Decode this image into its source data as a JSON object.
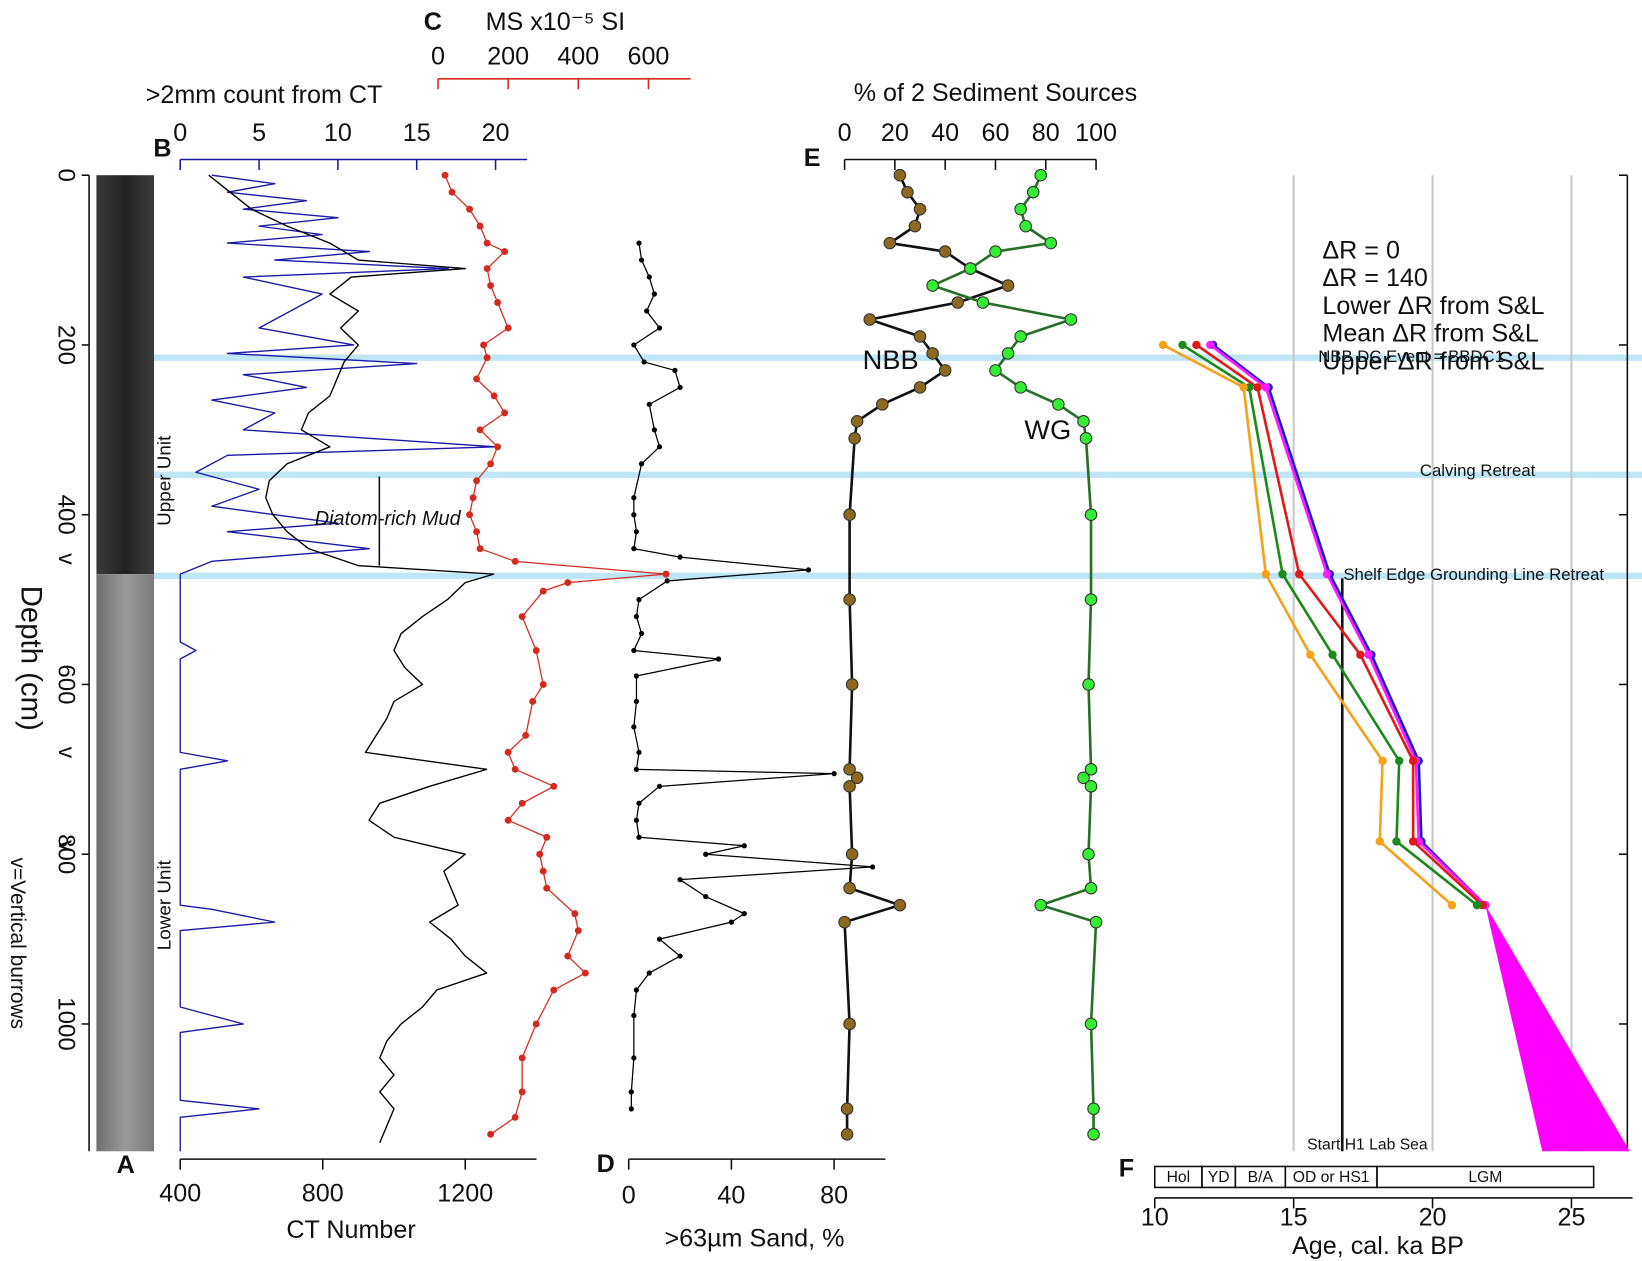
{
  "chart_data": [
    {
      "type": "core",
      "label": "A",
      "ylabel": "Depth (cm)",
      "ylim": [
        0,
        1150
      ],
      "yticks": [
        0,
        200,
        400,
        600,
        800,
        1000
      ],
      "note": "v=Vertical burrows",
      "burrow_symbol": "v",
      "burrow_depths": [
        452,
        680,
        790
      ]
    },
    {
      "type": "profile",
      "label": "B",
      "xlabel": ">2mm count from CT",
      "xlim": [
        0,
        22
      ],
      "xticks": [
        0,
        5,
        10,
        15,
        20
      ],
      "color": "#1a1aa6",
      "depth": [
        0,
        10,
        20,
        30,
        40,
        50,
        60,
        70,
        80,
        90,
        100,
        110,
        120,
        140,
        160,
        180,
        200,
        210,
        222,
        235,
        250,
        265,
        280,
        300,
        320,
        330,
        350,
        370,
        390,
        410,
        420,
        440,
        455,
        470,
        550,
        560,
        570,
        680,
        690,
        700,
        860,
        865,
        880,
        890,
        980,
        990,
        1000,
        1010,
        1090,
        1100,
        1110,
        1150
      ],
      "values": [
        2,
        6,
        3,
        8,
        4,
        10,
        5,
        9,
        3,
        12,
        6,
        17,
        4,
        9,
        7,
        5,
        11,
        3,
        15,
        4,
        8,
        2,
        6,
        4,
        20,
        3,
        1,
        5,
        2,
        10,
        3,
        12,
        2,
        0,
        0,
        1,
        0,
        0,
        3,
        0,
        0,
        2,
        6,
        0,
        0,
        2,
        4,
        0,
        0,
        5,
        0,
        0
      ],
      "annotations": [
        {
          "text": "Upper Unit",
          "depth": 360
        },
        {
          "text": "Lower Unit",
          "depth": 860
        }
      ]
    },
    {
      "type": "profile",
      "xlabel": "CT Number",
      "xlim": [
        400,
        1400
      ],
      "xticks": [
        400,
        800,
        1200
      ],
      "color": "#000000",
      "depth": [
        0,
        20,
        40,
        60,
        80,
        100,
        110,
        120,
        140,
        160,
        180,
        200,
        220,
        240,
        260,
        280,
        300,
        320,
        340,
        360,
        380,
        400,
        420,
        440,
        460,
        470,
        480,
        500,
        520,
        540,
        560,
        580,
        600,
        620,
        640,
        660,
        680,
        700,
        720,
        740,
        760,
        780,
        800,
        820,
        840,
        860,
        880,
        900,
        920,
        940,
        960,
        980,
        1000,
        1020,
        1040,
        1060,
        1080,
        1100,
        1120,
        1140
      ],
      "values": [
        480,
        540,
        600,
        700,
        820,
        900,
        1200,
        880,
        820,
        900,
        850,
        900,
        860,
        840,
        820,
        760,
        740,
        820,
        700,
        650,
        640,
        660,
        700,
        760,
        900,
        1280,
        1200,
        1150,
        1080,
        1020,
        1000,
        1030,
        1080,
        1000,
        980,
        950,
        920,
        1260,
        1100,
        960,
        930,
        1000,
        1200,
        1140,
        1160,
        1180,
        1100,
        1160,
        1200,
        1260,
        1120,
        1080,
        1020,
        980,
        960,
        1000,
        960,
        1000,
        980,
        960
      ],
      "annotations": [
        {
          "text": "Diatom-rich Mud",
          "depth": 405
        }
      ]
    },
    {
      "type": "profile",
      "label": "C",
      "xlabel": "MS x10⁻⁵ SI",
      "xlim": [
        0,
        720
      ],
      "xticks": [
        0,
        200,
        400,
        600
      ],
      "color": "#d42a1e",
      "markers": true,
      "depth": [
        0,
        20,
        40,
        60,
        80,
        90,
        110,
        130,
        150,
        180,
        200,
        215,
        240,
        260,
        280,
        300,
        320,
        340,
        360,
        380,
        400,
        420,
        440,
        455,
        470,
        480,
        490,
        520,
        560,
        600,
        620,
        660,
        680,
        700,
        720,
        740,
        760,
        780,
        800,
        820,
        840,
        870,
        890,
        920,
        940,
        960,
        1000,
        1040,
        1080,
        1110,
        1130
      ],
      "values": [
        20,
        40,
        90,
        120,
        140,
        190,
        140,
        150,
        170,
        200,
        130,
        140,
        110,
        160,
        190,
        120,
        170,
        150,
        110,
        100,
        90,
        110,
        120,
        220,
        650,
        370,
        300,
        240,
        280,
        300,
        270,
        250,
        200,
        220,
        330,
        240,
        200,
        310,
        290,
        300,
        310,
        390,
        400,
        370,
        420,
        330,
        280,
        240,
        240,
        220,
        150
      ]
    },
    {
      "type": "profile",
      "label": "D",
      "xlabel": ">63µm Sand, %",
      "xlim": [
        0,
        100
      ],
      "xticks": [
        0,
        40,
        80
      ],
      "color": "#000000",
      "markers": true,
      "depth": [
        80,
        100,
        120,
        140,
        160,
        180,
        200,
        220,
        230,
        250,
        270,
        300,
        320,
        340,
        380,
        400,
        420,
        440,
        450,
        465,
        478,
        500,
        520,
        540,
        560,
        570,
        590,
        620,
        650,
        680,
        700,
        705,
        720,
        740,
        760,
        780,
        790,
        800,
        815,
        830,
        850,
        870,
        880,
        900,
        920,
        940,
        960,
        990,
        1040,
        1080,
        1100
      ],
      "values": [
        4,
        5,
        8,
        10,
        7,
        12,
        2,
        6,
        18,
        20,
        8,
        10,
        12,
        5,
        2,
        2,
        3,
        2,
        20,
        70,
        15,
        4,
        3,
        5,
        2,
        35,
        3,
        3,
        2,
        4,
        3,
        80,
        12,
        4,
        3,
        4,
        45,
        30,
        95,
        20,
        30,
        45,
        40,
        12,
        20,
        8,
        3,
        2,
        2,
        1,
        1
      ]
    },
    {
      "type": "profile",
      "label": "E",
      "title": "% of 2 Sediment Sources",
      "xlim": [
        0,
        100
      ],
      "xticks": [
        0,
        20,
        40,
        60,
        80,
        100
      ],
      "depth": [
        0,
        20,
        40,
        60,
        80,
        90,
        110,
        130,
        150,
        170,
        190,
        210,
        230,
        250,
        270,
        290,
        310,
        400,
        500,
        600,
        700,
        710,
        720,
        800,
        840,
        860,
        880,
        1000,
        1100,
        1130
      ],
      "series": [
        {
          "name": "NBB",
          "color": "#8b6a1f",
          "line_color": "#111111",
          "values": [
            22,
            25,
            30,
            28,
            18,
            40,
            50,
            65,
            45,
            10,
            30,
            35,
            40,
            30,
            15,
            5,
            4,
            2,
            2,
            3,
            2,
            5,
            2,
            3,
            2,
            22,
            0,
            2,
            1,
            1
          ]
        },
        {
          "name": "WG",
          "color": "#33ee33",
          "line_color": "#2a6e2a",
          "values": [
            78,
            75,
            70,
            72,
            82,
            60,
            50,
            35,
            55,
            90,
            70,
            65,
            60,
            70,
            85,
            95,
            96,
            98,
            98,
            97,
            98,
            95,
            98,
            97,
            98,
            78,
            100,
            98,
            99,
            99
          ]
        }
      ]
    },
    {
      "type": "age-model",
      "label": "F",
      "xlabel": "Age, cal. ka BP",
      "xlim": [
        10,
        27.2
      ],
      "xticks": [
        10,
        15,
        20,
        25
      ],
      "grid": true,
      "depth": [
        200,
        250,
        470,
        565,
        690,
        785,
        860
      ],
      "series": [
        {
          "name": "ΔR = 0",
          "color": "#1a1acc",
          "values": [
            12.1,
            14.1,
            16.3,
            17.8,
            19.5,
            19.6,
            21.9
          ]
        },
        {
          "name": "ΔR = 140",
          "color": "#ff1aff",
          "values": [
            12.0,
            14.0,
            16.2,
            17.7,
            19.4,
            19.5,
            21.9
          ]
        },
        {
          "name": "Lower ΔR from S&L",
          "color": "#e01a1a",
          "values": [
            11.5,
            13.7,
            15.2,
            17.4,
            19.3,
            19.3,
            21.8
          ]
        },
        {
          "name": "Mean ΔR from S&L",
          "color": "#1a8a1a",
          "values": [
            11.0,
            13.4,
            14.6,
            16.4,
            18.8,
            18.7,
            21.6
          ]
        },
        {
          "name": "Upper ΔR from S&L",
          "color": "#f5a21a",
          "values": [
            10.3,
            13.2,
            14.0,
            15.6,
            18.2,
            18.1,
            20.7
          ]
        }
      ],
      "extrapolation": {
        "color": "#ff00ff",
        "apex_age": 21.9,
        "apex_depth": 860,
        "base_ages": [
          23.95,
          27.1
        ],
        "base_depth": 1150
      },
      "events": [
        {
          "text": "NBB DC Event = BBDC1",
          "depth": 215
        },
        {
          "text": "Calving Retreat",
          "depth": 353
        },
        {
          "text": "Shelf Edge Grounding Line Retreat",
          "depth": 472
        }
      ],
      "marker_line": {
        "text": "Start H1 Lab Sea",
        "age": 16.75,
        "from_depth": 475
      },
      "chronozones": [
        {
          "label": "Hol",
          "start": 10,
          "end": 11.7
        },
        {
          "label": "YD",
          "start": 11.7,
          "end": 12.9
        },
        {
          "label": "B/A",
          "start": 12.9,
          "end": 14.7
        },
        {
          "label": "OD or HS1",
          "start": 14.7,
          "end": 18.0
        },
        {
          "label": "LGM",
          "start": 18.0,
          "end": 25.8
        }
      ]
    }
  ]
}
